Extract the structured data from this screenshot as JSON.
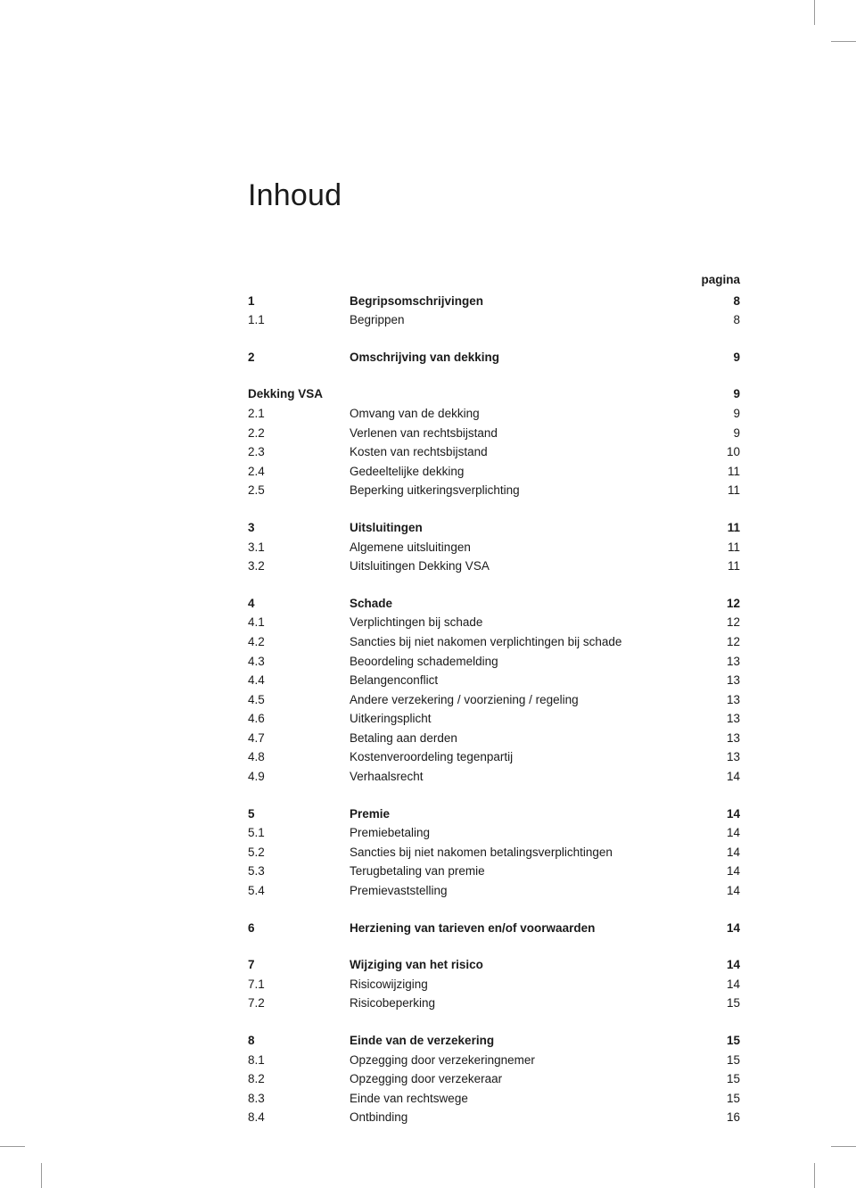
{
  "title": "Inhoud",
  "page_header_label": "pagina",
  "colors": {
    "text": "#1a1a1a",
    "background": "#ffffff",
    "crop_mark": "#999999"
  },
  "typography": {
    "title_fontsize_pt": 26,
    "body_fontsize_pt": 10,
    "font_family": "sans-serif"
  },
  "entries": [
    {
      "num": "1",
      "title": "Begripsomschrijvingen",
      "page": "8",
      "bold": true,
      "gap_before": false
    },
    {
      "num": "1.1",
      "title": "Begrippen",
      "page": "8",
      "bold": false,
      "gap_before": false
    },
    {
      "num": "2",
      "title": "Omschrijving van dekking",
      "page": "9",
      "bold": true,
      "gap_before": true
    },
    {
      "num": "Dekking VSA",
      "title": "",
      "page": "9",
      "bold": true,
      "gap_before": true,
      "span_num": true
    },
    {
      "num": "2.1",
      "title": "Omvang van de dekking",
      "page": "9",
      "bold": false,
      "gap_before": false
    },
    {
      "num": "2.2",
      "title": "Verlenen van rechtsbijstand",
      "page": "9",
      "bold": false,
      "gap_before": false
    },
    {
      "num": "2.3",
      "title": "Kosten van rechtsbijstand",
      "page": "10",
      "bold": false,
      "gap_before": false
    },
    {
      "num": "2.4",
      "title": "Gedeeltelijke dekking",
      "page": "11",
      "bold": false,
      "gap_before": false
    },
    {
      "num": "2.5",
      "title": "Beperking uitkeringsverplichting",
      "page": "11",
      "bold": false,
      "gap_before": false
    },
    {
      "num": "3",
      "title": "Uitsluitingen",
      "page": "11",
      "bold": true,
      "gap_before": true
    },
    {
      "num": "3.1",
      "title": "Algemene uitsluitingen",
      "page": "11",
      "bold": false,
      "gap_before": false
    },
    {
      "num": "3.2",
      "title": "Uitsluitingen Dekking VSA",
      "page": "11",
      "bold": false,
      "gap_before": false
    },
    {
      "num": "4",
      "title": "Schade",
      "page": "12",
      "bold": true,
      "gap_before": true
    },
    {
      "num": "4.1",
      "title": "Verplichtingen bij schade",
      "page": "12",
      "bold": false,
      "gap_before": false
    },
    {
      "num": "4.2",
      "title": "Sancties bij niet nakomen verplichtingen bij schade",
      "page": "12",
      "bold": false,
      "gap_before": false
    },
    {
      "num": "4.3",
      "title": "Beoordeling schademelding",
      "page": "13",
      "bold": false,
      "gap_before": false
    },
    {
      "num": "4.4",
      "title": "Belangenconflict",
      "page": "13",
      "bold": false,
      "gap_before": false
    },
    {
      "num": "4.5",
      "title": "Andere verzekering / voorziening / regeling",
      "page": "13",
      "bold": false,
      "gap_before": false
    },
    {
      "num": "4.6",
      "title": "Uitkeringsplicht",
      "page": "13",
      "bold": false,
      "gap_before": false
    },
    {
      "num": "4.7",
      "title": "Betaling aan derden",
      "page": "13",
      "bold": false,
      "gap_before": false
    },
    {
      "num": "4.8",
      "title": "Kostenveroordeling tegenpartij",
      "page": "13",
      "bold": false,
      "gap_before": false
    },
    {
      "num": "4.9",
      "title": "Verhaalsrecht",
      "page": "14",
      "bold": false,
      "gap_before": false
    },
    {
      "num": "5",
      "title": "Premie",
      "page": "14",
      "bold": true,
      "gap_before": true
    },
    {
      "num": "5.1",
      "title": "Premiebetaling",
      "page": "14",
      "bold": false,
      "gap_before": false
    },
    {
      "num": "5.2",
      "title": "Sancties bij niet nakomen betalingsverplichtingen",
      "page": "14",
      "bold": false,
      "gap_before": false
    },
    {
      "num": "5.3",
      "title": "Terugbetaling van premie",
      "page": "14",
      "bold": false,
      "gap_before": false
    },
    {
      "num": "5.4",
      "title": "Premievaststelling",
      "page": "14",
      "bold": false,
      "gap_before": false
    },
    {
      "num": "6",
      "title": "Herziening van tarieven en/of voorwaarden",
      "page": "14",
      "bold": true,
      "gap_before": true
    },
    {
      "num": "7",
      "title": "Wijziging van het risico",
      "page": "14",
      "bold": true,
      "gap_before": true
    },
    {
      "num": "7.1",
      "title": "Risicowijziging",
      "page": "14",
      "bold": false,
      "gap_before": false
    },
    {
      "num": "7.2",
      "title": "Risicobeperking",
      "page": "15",
      "bold": false,
      "gap_before": false
    },
    {
      "num": "8",
      "title": "Einde van de verzekering",
      "page": "15",
      "bold": true,
      "gap_before": true
    },
    {
      "num": "8.1",
      "title": "Opzegging door verzekeringnemer",
      "page": "15",
      "bold": false,
      "gap_before": false
    },
    {
      "num": "8.2",
      "title": "Opzegging door verzekeraar",
      "page": "15",
      "bold": false,
      "gap_before": false
    },
    {
      "num": "8.3",
      "title": "Einde van rechtswege",
      "page": "15",
      "bold": false,
      "gap_before": false
    },
    {
      "num": "8.4",
      "title": "Ontbinding",
      "page": "16",
      "bold": false,
      "gap_before": false
    }
  ]
}
